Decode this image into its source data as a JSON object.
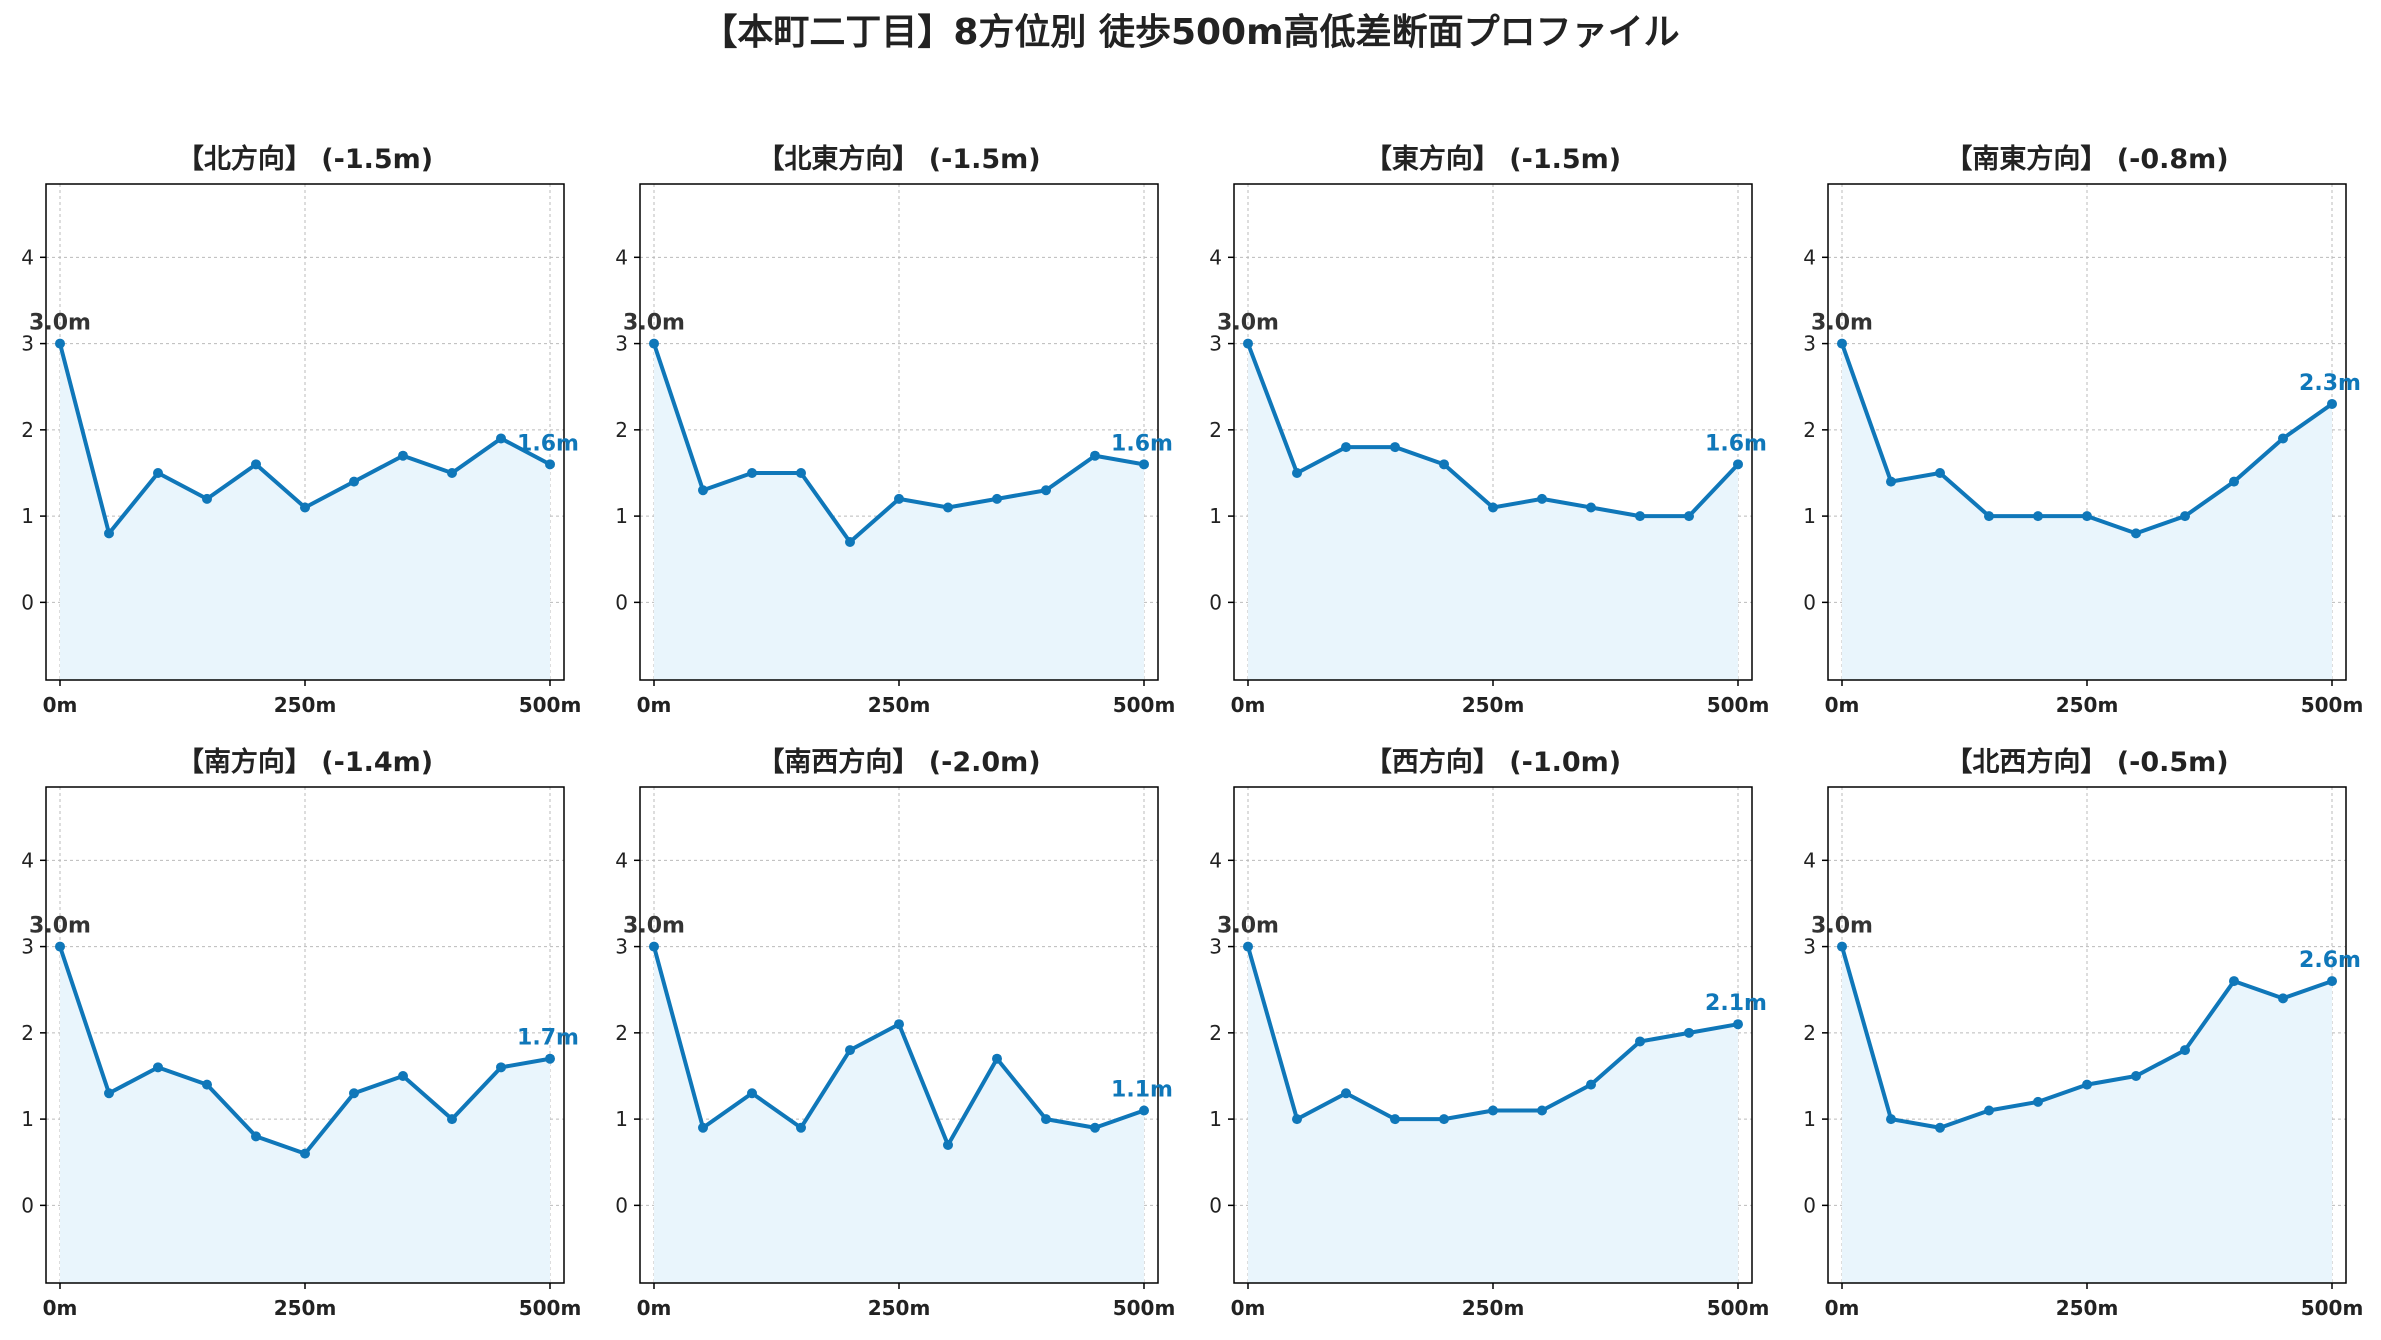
{
  "title": "【本町二丁目】8方位別 徒歩500m高低差断面プロファイル",
  "colors": {
    "line": "#0f77b9",
    "fill": "#e9f5fc",
    "start_label": "#333333",
    "end_label": "#0f77b9",
    "grid": "#bbbbbb"
  },
  "chart_data": [
    {
      "type": "area",
      "title": "【北方向】 (-1.5m)",
      "x": [
        0,
        50,
        100,
        150,
        200,
        250,
        300,
        350,
        400,
        450,
        500
      ],
      "y": [
        3.0,
        0.8,
        1.5,
        1.2,
        1.6,
        1.1,
        1.4,
        1.7,
        1.5,
        1.9,
        1.6
      ],
      "xticks": [
        "0m",
        "250m",
        "500m"
      ],
      "yticks": [
        "0",
        "1",
        "2",
        "3",
        "4"
      ],
      "start_label": "3.0m",
      "end_label": "1.6m",
      "ylim": [
        -0.9,
        4.85
      ],
      "grid": true
    },
    {
      "type": "area",
      "title": "【北東方向】 (-1.5m)",
      "x": [
        0,
        50,
        100,
        150,
        200,
        250,
        300,
        350,
        400,
        450,
        500
      ],
      "y": [
        3.0,
        1.3,
        1.5,
        1.5,
        0.7,
        1.2,
        1.1,
        1.2,
        1.3,
        1.7,
        1.6
      ],
      "xticks": [
        "0m",
        "250m",
        "500m"
      ],
      "yticks": [
        "0",
        "1",
        "2",
        "3",
        "4"
      ],
      "start_label": "3.0m",
      "end_label": "1.6m",
      "ylim": [
        -0.9,
        4.85
      ],
      "grid": true
    },
    {
      "type": "area",
      "title": "【東方向】 (-1.5m)",
      "x": [
        0,
        50,
        100,
        150,
        200,
        250,
        300,
        350,
        400,
        450,
        500
      ],
      "y": [
        3.0,
        1.5,
        1.8,
        1.8,
        1.6,
        1.1,
        1.2,
        1.1,
        1.0,
        1.0,
        1.6
      ],
      "xticks": [
        "0m",
        "250m",
        "500m"
      ],
      "yticks": [
        "0",
        "1",
        "2",
        "3",
        "4"
      ],
      "start_label": "3.0m",
      "end_label": "1.6m",
      "ylim": [
        -0.9,
        4.85
      ],
      "grid": true
    },
    {
      "type": "area",
      "title": "【南東方向】 (-0.8m)",
      "x": [
        0,
        50,
        100,
        150,
        200,
        250,
        300,
        350,
        400,
        450,
        500
      ],
      "y": [
        3.0,
        1.4,
        1.5,
        1.0,
        1.0,
        1.0,
        0.8,
        1.0,
        1.4,
        1.9,
        2.3
      ],
      "xticks": [
        "0m",
        "250m",
        "500m"
      ],
      "yticks": [
        "0",
        "1",
        "2",
        "3",
        "4"
      ],
      "start_label": "3.0m",
      "end_label": "2.3m",
      "ylim": [
        -0.9,
        4.85
      ],
      "grid": true
    },
    {
      "type": "area",
      "title": "【南方向】 (-1.4m)",
      "x": [
        0,
        50,
        100,
        150,
        200,
        250,
        300,
        350,
        400,
        450,
        500
      ],
      "y": [
        3.0,
        1.3,
        1.6,
        1.4,
        0.8,
        0.6,
        1.3,
        1.5,
        1.0,
        1.6,
        1.7
      ],
      "xticks": [
        "0m",
        "250m",
        "500m"
      ],
      "yticks": [
        "0",
        "1",
        "2",
        "3",
        "4"
      ],
      "start_label": "3.0m",
      "end_label": "1.7m",
      "ylim": [
        -0.9,
        4.85
      ],
      "grid": true
    },
    {
      "type": "area",
      "title": "【南西方向】 (-2.0m)",
      "x": [
        0,
        50,
        100,
        150,
        200,
        250,
        300,
        350,
        400,
        450,
        500
      ],
      "y": [
        3.0,
        0.9,
        1.3,
        0.9,
        1.8,
        2.1,
        0.7,
        1.7,
        1.0,
        0.9,
        1.1
      ],
      "xticks": [
        "0m",
        "250m",
        "500m"
      ],
      "yticks": [
        "0",
        "1",
        "2",
        "3",
        "4"
      ],
      "start_label": "3.0m",
      "end_label": "1.1m",
      "ylim": [
        -0.9,
        4.85
      ],
      "grid": true
    },
    {
      "type": "area",
      "title": "【西方向】 (-1.0m)",
      "x": [
        0,
        50,
        100,
        150,
        200,
        250,
        300,
        350,
        400,
        450,
        500
      ],
      "y": [
        3.0,
        1.0,
        1.3,
        1.0,
        1.0,
        1.1,
        1.1,
        1.4,
        1.9,
        2.0,
        2.1
      ],
      "xticks": [
        "0m",
        "250m",
        "500m"
      ],
      "yticks": [
        "0",
        "1",
        "2",
        "3",
        "4"
      ],
      "start_label": "3.0m",
      "end_label": "2.1m",
      "ylim": [
        -0.9,
        4.85
      ],
      "grid": true
    },
    {
      "type": "area",
      "title": "【北西方向】 (-0.5m)",
      "x": [
        0,
        50,
        100,
        150,
        200,
        250,
        300,
        350,
        400,
        450,
        500
      ],
      "y": [
        3.0,
        1.0,
        0.9,
        1.1,
        1.2,
        1.4,
        1.5,
        1.8,
        2.6,
        2.4,
        2.6
      ],
      "xticks": [
        "0m",
        "250m",
        "500m"
      ],
      "yticks": [
        "0",
        "1",
        "2",
        "3",
        "4"
      ],
      "start_label": "3.0m",
      "end_label": "2.6m",
      "ylim": [
        -0.9,
        4.85
      ],
      "grid": true
    }
  ]
}
